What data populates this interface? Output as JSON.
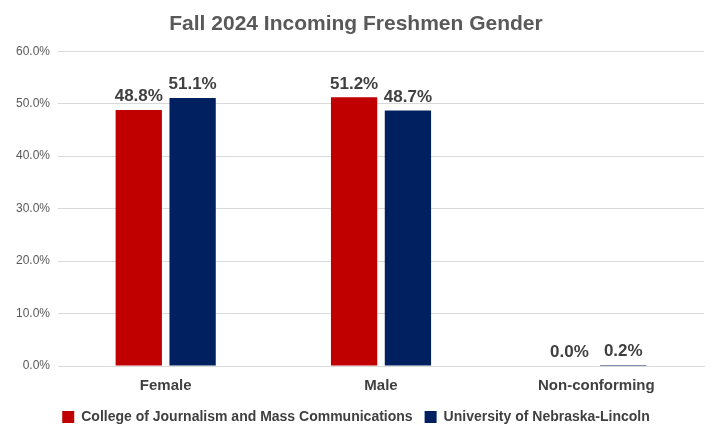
{
  "chart_data": {
    "type": "bar",
    "title": "Fall 2024 Incoming Freshmen Gender",
    "categories": [
      "Female",
      "Male",
      "Non-conforming"
    ],
    "series": [
      {
        "name": "College of Journalism and Mass Communications",
        "color": "#c00000",
        "values": [
          48.8,
          51.2,
          0.0
        ],
        "value_labels": [
          "48.8%",
          "51.2%",
          "0.0%"
        ]
      },
      {
        "name": "University of Nebraska-Lincoln",
        "color": "#002060",
        "values": [
          51.1,
          48.7,
          0.2
        ],
        "value_labels": [
          "51.1%",
          "48.7%",
          "0.2%"
        ]
      }
    ],
    "ylim": [
      0,
      60
    ],
    "yticks": [
      {
        "value": 0,
        "label": "0.0%"
      },
      {
        "value": 10,
        "label": "10.0%"
      },
      {
        "value": 20,
        "label": "20.0%"
      },
      {
        "value": 30,
        "label": "30.0%"
      },
      {
        "value": 40,
        "label": "40.0%"
      },
      {
        "value": 50,
        "label": "50.0%"
      },
      {
        "value": 60,
        "label": "60.0%"
      }
    ],
    "grid": true,
    "legend": "bottom",
    "data_labels": true
  }
}
